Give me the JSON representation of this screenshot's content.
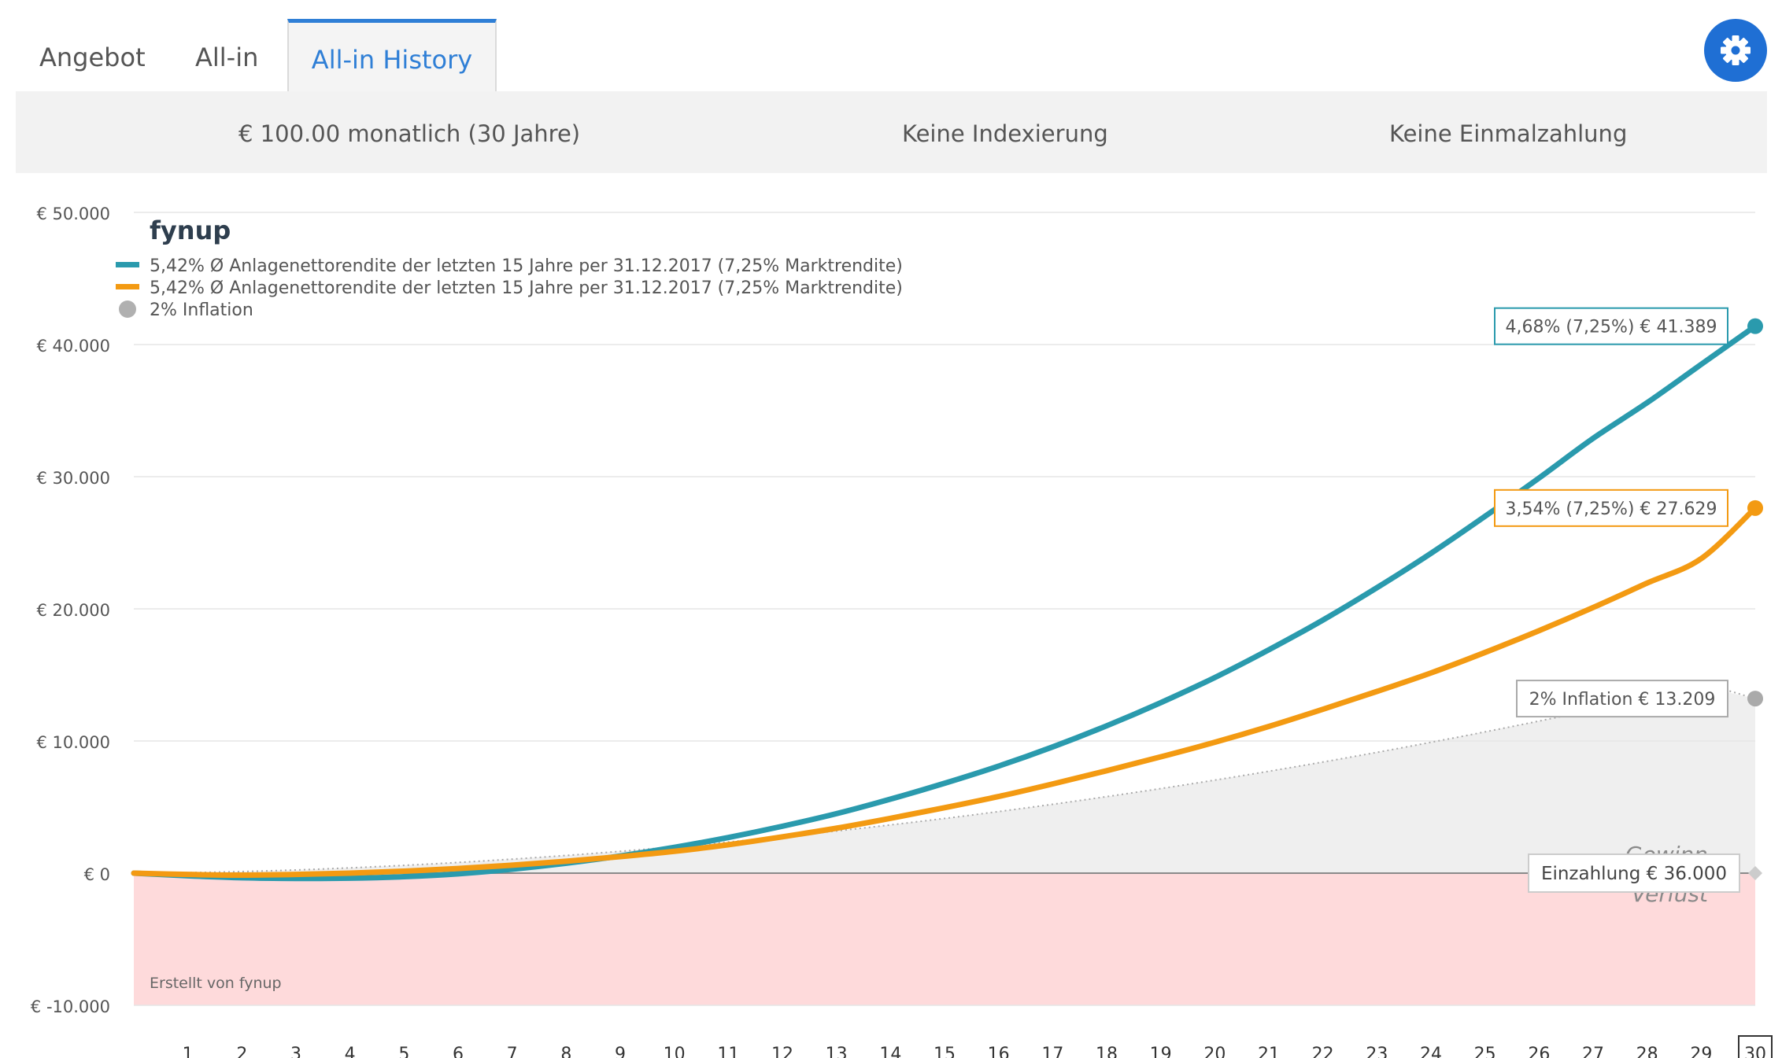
{
  "tabs": [
    "Angebot",
    "All-in",
    "All-in History"
  ],
  "active_tab": 2,
  "settings_icon": "gear-icon",
  "summary": {
    "contribution": "€ 100.00 monatlich (30 Jahre)",
    "indexing": "Keine Indexierung",
    "lump_sum": "Keine Einmalzahlung"
  },
  "chart_data": {
    "type": "line",
    "logo": "fynup",
    "credit": "Erstellt von fynup",
    "x": [
      0,
      1,
      2,
      3,
      4,
      5,
      6,
      7,
      8,
      9,
      10,
      11,
      12,
      13,
      14,
      15,
      16,
      17,
      18,
      19,
      20,
      21,
      22,
      23,
      24,
      25,
      26,
      27,
      28,
      29,
      30
    ],
    "xticks": [
      "1",
      "2",
      "3",
      "4",
      "5",
      "6",
      "7",
      "8",
      "9",
      "10",
      "11",
      "12",
      "13",
      "14",
      "15",
      "16",
      "17",
      "18",
      "19",
      "20",
      "21",
      "22",
      "23",
      "24",
      "25",
      "26",
      "27",
      "28",
      "29",
      "30"
    ],
    "selected_x": "30",
    "ylim": [
      -10000,
      50000
    ],
    "yticks": [
      {
        "value": 50000,
        "label": "€ 50.000"
      },
      {
        "value": 40000,
        "label": "€ 40.000"
      },
      {
        "value": 30000,
        "label": "€ 30.000"
      },
      {
        "value": 20000,
        "label": "€ 20.000"
      },
      {
        "value": 10000,
        "label": "€ 10.000"
      },
      {
        "value": 0,
        "label": "€ 0"
      },
      {
        "value": -10000,
        "label": "€ -10.000"
      }
    ],
    "grid": true,
    "legend_position": "top-left",
    "series": [
      {
        "name": "5,42% Ø Anlagenettorendite der letzten 15 Jahre per 31.12.2017 (7,25% Marktrendite)",
        "color": "#2a9aad",
        "values": [
          0,
          -200,
          -350,
          -400,
          -380,
          -270,
          -50,
          300,
          750,
          1300,
          1950,
          2700,
          3550,
          4500,
          5600,
          6800,
          8100,
          9550,
          11150,
          12900,
          14800,
          16900,
          19150,
          21600,
          24200,
          27000,
          29900,
          32900,
          35600,
          38500,
          41389
        ],
        "end_label": "4,68% (7,25%) € 41.389"
      },
      {
        "name": "5,42% Ø Anlagenettorendite der letzten 15 Jahre per 31.12.2017 (7,25% Marktrendite)",
        "color": "#f39a12",
        "values": [
          0,
          -100,
          -150,
          -100,
          0,
          150,
          350,
          600,
          900,
          1250,
          1650,
          2150,
          2750,
          3400,
          4150,
          4950,
          5800,
          6750,
          7750,
          8800,
          9900,
          11100,
          12400,
          13750,
          15150,
          16700,
          18350,
          20100,
          21950,
          23800,
          27629
        ],
        "end_label": "3,54% (7,25%) € 27.629"
      },
      {
        "name": "2% Inflation",
        "color": "#aaaaaa",
        "values": [
          0,
          40,
          120,
          240,
          400,
          590,
          810,
          1060,
          1340,
          1650,
          1990,
          2360,
          2760,
          3190,
          3650,
          4140,
          4660,
          5210,
          5790,
          6400,
          7040,
          7710,
          8410,
          9140,
          9900,
          10690,
          11510,
          12360,
          13240,
          14150,
          13209
        ],
        "end_label": "2% Inflation € 13.209"
      }
    ],
    "baseline": {
      "value": 0,
      "label": "Einzahlung € 36.000"
    },
    "zone_labels": {
      "gain": "Gewinn",
      "loss": "Verlust"
    }
  }
}
